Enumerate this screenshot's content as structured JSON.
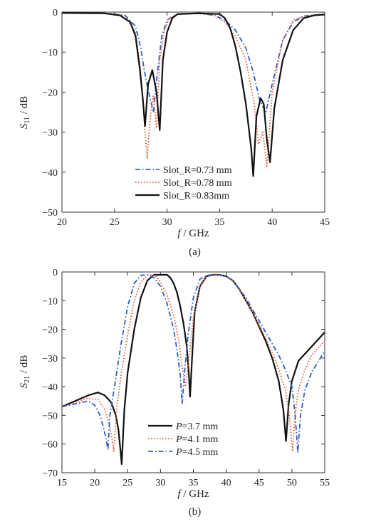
{
  "chart_data": [
    {
      "type": "line",
      "panel_label": "(a)",
      "xlabel_var": "f",
      "xlabel_unit": " / GHz",
      "ylabel_var": "S",
      "ylabel_sub": "11",
      "ylabel_unit": " / dB",
      "xlim": [
        20,
        45
      ],
      "ylim": [
        -50,
        0
      ],
      "xticks": [
        20,
        25,
        30,
        35,
        40,
        45
      ],
      "yticks": [
        0,
        -10,
        -20,
        -30,
        -40,
        -50
      ],
      "grid": false,
      "legend_position": "bottom-center",
      "series": [
        {
          "name": "Slot_R=0.73 mm",
          "color": "#2f5fc4",
          "dash": "dashdot",
          "x": [
            20,
            24,
            26,
            27,
            27.5,
            27.8,
            28.2,
            28.7,
            29,
            29.5,
            30,
            31,
            33,
            34.5,
            35.5,
            36.5,
            37.5,
            38.2,
            38.8,
            39.4,
            40,
            41,
            42,
            43,
            45
          ],
          "y": [
            -0.2,
            -0.3,
            -0.8,
            -3.5,
            -9,
            -14,
            -19.5,
            -25,
            -17,
            -6,
            -2,
            -0.5,
            -0.3,
            -0.8,
            -2,
            -4.5,
            -9,
            -15,
            -22,
            -25,
            -18,
            -7,
            -2.5,
            -1,
            -0.5
          ]
        },
        {
          "name": "Slot_R=0.78 mm",
          "color": "#e0603a",
          "dash": "dot",
          "x": [
            20,
            24,
            26,
            27,
            27.5,
            27.8,
            28.1,
            28.4,
            28.7,
            29,
            29.3,
            29.7,
            30.2,
            31,
            33,
            34.5,
            35.5,
            36.5,
            37.5,
            38.3,
            38.7,
            39.1,
            39.5,
            40,
            41,
            42,
            43,
            45
          ],
          "y": [
            -0.2,
            -0.3,
            -1,
            -5,
            -15,
            -26,
            -36.5,
            -26,
            -21,
            -29,
            -12,
            -5,
            -1.5,
            -0.5,
            -0.3,
            -0.8,
            -2.5,
            -6,
            -12,
            -23,
            -33,
            -30,
            -38.5,
            -20,
            -7,
            -2,
            -1,
            -0.5
          ]
        },
        {
          "name": "Slot_R=0.83mm",
          "color": "#111111",
          "dash": "solid",
          "x": [
            20,
            24,
            25.5,
            26.5,
            27,
            27.4,
            27.7,
            27.9,
            28.2,
            28.6,
            29,
            29.3,
            29.6,
            30,
            30.5,
            31,
            33,
            35,
            35.5,
            36,
            36.5,
            37,
            37.5,
            38,
            38.2,
            38.5,
            38.9,
            39.2,
            39.5,
            39.8,
            40.2,
            41,
            42,
            43,
            44,
            45
          ],
          "y": [
            -0.2,
            -0.3,
            -0.8,
            -2.5,
            -6,
            -14,
            -22,
            -28.5,
            -18,
            -14.5,
            -20,
            -29.5,
            -12,
            -5,
            -1.5,
            -0.5,
            -0.3,
            -0.5,
            -1.5,
            -4,
            -8.5,
            -15,
            -23,
            -34,
            -41,
            -26,
            -21.5,
            -23,
            -32,
            -37.5,
            -24,
            -12,
            -4.5,
            -1.5,
            -0.8,
            -0.6
          ]
        }
      ]
    },
    {
      "type": "line",
      "panel_label": "(b)",
      "xlabel_var": "f",
      "xlabel_unit": " / GHz",
      "ylabel_var": "S",
      "ylabel_sub": "21",
      "ylabel_unit": " / dB",
      "xlim": [
        15,
        55
      ],
      "ylim": [
        -70,
        0
      ],
      "xticks": [
        15,
        20,
        25,
        30,
        35,
        40,
        45,
        50,
        55
      ],
      "yticks": [
        0,
        -10,
        -20,
        -30,
        -40,
        -50,
        -60,
        -70
      ],
      "grid": false,
      "legend_position": "bottom-center",
      "series": [
        {
          "name_var": "P",
          "name": "=3.7 mm",
          "color": "#111111",
          "dash": "solid",
          "x": [
            15,
            17,
            19,
            20.5,
            21.5,
            22.5,
            23.2,
            23.6,
            23.9,
            24.1,
            24.5,
            25,
            26,
            27,
            28,
            29,
            30,
            31,
            31.5,
            32,
            32.5,
            33,
            33.5,
            34,
            34.3,
            34.5,
            34.8,
            35.2,
            36,
            37,
            38,
            39,
            40,
            41,
            42,
            43,
            44,
            45,
            46,
            47,
            48,
            48.7,
            49.1,
            49.5,
            50,
            51,
            53,
            55
          ],
          "y": [
            -47,
            -45,
            -43,
            -42,
            -43,
            -45.5,
            -50,
            -55,
            -62,
            -67,
            -48,
            -35,
            -20,
            -9,
            -3,
            -1,
            -1,
            -1,
            -2,
            -4,
            -7,
            -12,
            -18,
            -26,
            -35,
            -43.5,
            -30,
            -14,
            -5,
            -1.5,
            -1,
            -1,
            -1.5,
            -3,
            -6,
            -10,
            -14,
            -19,
            -24,
            -30,
            -38,
            -48,
            -59,
            -46,
            -38,
            -31,
            -26,
            -21
          ]
        },
        {
          "name_var": "P",
          "name": "=4.1 mm",
          "color": "#e0603a",
          "dash": "dot",
          "x": [
            15,
            17,
            19,
            20.5,
            21.5,
            22.2,
            22.6,
            22.9,
            23.3,
            24,
            25,
            26,
            27,
            28,
            28.5,
            29,
            29.5,
            30,
            31,
            32,
            32.8,
            33.3,
            33.8,
            34.3,
            35,
            36,
            37,
            38,
            39,
            40,
            41,
            42,
            43,
            44,
            45,
            46,
            47,
            48,
            49,
            49.6,
            50.1,
            50.5,
            51,
            52,
            53,
            55
          ],
          "y": [
            -47,
            -45.5,
            -44,
            -44.5,
            -48,
            -53,
            -58,
            -62.5,
            -48,
            -36,
            -22,
            -10,
            -3.5,
            -1.2,
            -1,
            -1.2,
            -2,
            -3.5,
            -8,
            -15,
            -24,
            -33,
            -40,
            -31,
            -16,
            -5,
            -1.5,
            -1,
            -1,
            -1.5,
            -3,
            -6,
            -10,
            -14,
            -18.5,
            -23,
            -28,
            -34,
            -41,
            -50,
            -62.5,
            -49,
            -41,
            -34,
            -29,
            -24
          ]
        },
        {
          "name_var": "P",
          "name": "=4.5 mm",
          "color": "#2f5fc4",
          "dash": "dashdot",
          "x": [
            15,
            17,
            19,
            20,
            20.8,
            21.3,
            21.7,
            22,
            22.3,
            23,
            24,
            25,
            26,
            27,
            28,
            29,
            30,
            31,
            32,
            32.5,
            33,
            33.3,
            33.7,
            34.2,
            35,
            36,
            37,
            38,
            39,
            40,
            41,
            42,
            43,
            44,
            45,
            46,
            47,
            48,
            49,
            50,
            50.5,
            50.9,
            51.3,
            52,
            53,
            55
          ],
          "y": [
            -47,
            -46,
            -45,
            -46.5,
            -50,
            -54,
            -58,
            -62,
            -50,
            -40,
            -25,
            -12,
            -4,
            -1.2,
            -1,
            -2,
            -5,
            -11,
            -20,
            -27,
            -36,
            -46,
            -34,
            -22,
            -9,
            -2.5,
            -1.2,
            -1,
            -1,
            -1.5,
            -3,
            -6,
            -9,
            -13,
            -17,
            -21,
            -25,
            -29,
            -34,
            -40,
            -50,
            -63,
            -50,
            -41,
            -35,
            -27.5
          ]
        }
      ]
    }
  ]
}
